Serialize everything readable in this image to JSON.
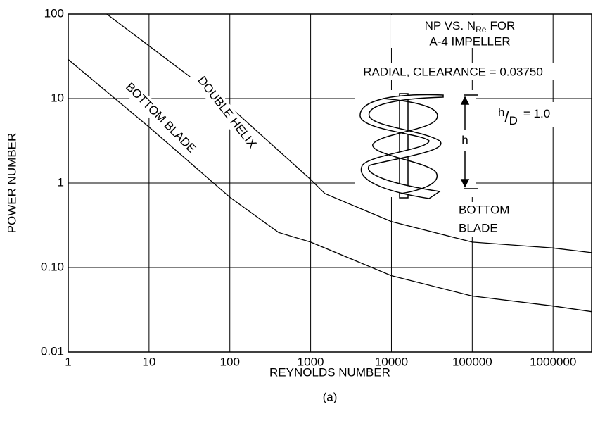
{
  "chart_data": {
    "type": "line",
    "log_x": true,
    "log_y": true,
    "grid": true,
    "x_label": "REYNOLDS NUMBER",
    "y_label": "POWER NUMBER",
    "caption": "(a)",
    "xlim": [
      1,
      3000000
    ],
    "ylim": [
      0.01,
      100
    ],
    "xticks": [
      1,
      10,
      100,
      1000,
      10000,
      100000,
      1000000
    ],
    "yticks": [
      0.01,
      {
        "value": 0.1,
        "label": "0.10"
      },
      1,
      10,
      100
    ],
    "series": [
      {
        "name": "DOUBLE HELIX",
        "color": "#000000",
        "x": [
          3,
          10,
          100,
          1000,
          1500,
          10000,
          100000,
          1000000,
          3000000
        ],
        "values": [
          100,
          42,
          8,
          1.1,
          0.75,
          0.35,
          0.2,
          0.17,
          0.15
        ]
      },
      {
        "name": "BOTTOM BLADE",
        "color": "#000000",
        "x": [
          1,
          10,
          100,
          400,
          1000,
          10000,
          100000,
          1000000,
          3000000
        ],
        "values": [
          29,
          4.6,
          0.68,
          0.26,
          0.2,
          0.08,
          0.046,
          0.035,
          0.03
        ]
      }
    ],
    "annotations": {
      "title_parts": [
        "NP VS. N",
        "Re",
        "FOR"
      ],
      "title_line2": "A-4 IMPELLER",
      "clearance": "RADIAL, CLEARANCE = 0.03750",
      "ratio_parts": [
        "h",
        "/",
        "D",
        "= 1.0"
      ],
      "height_label": "h",
      "blade_line1": "BOTTOM",
      "blade_line2": "BLADE"
    }
  }
}
